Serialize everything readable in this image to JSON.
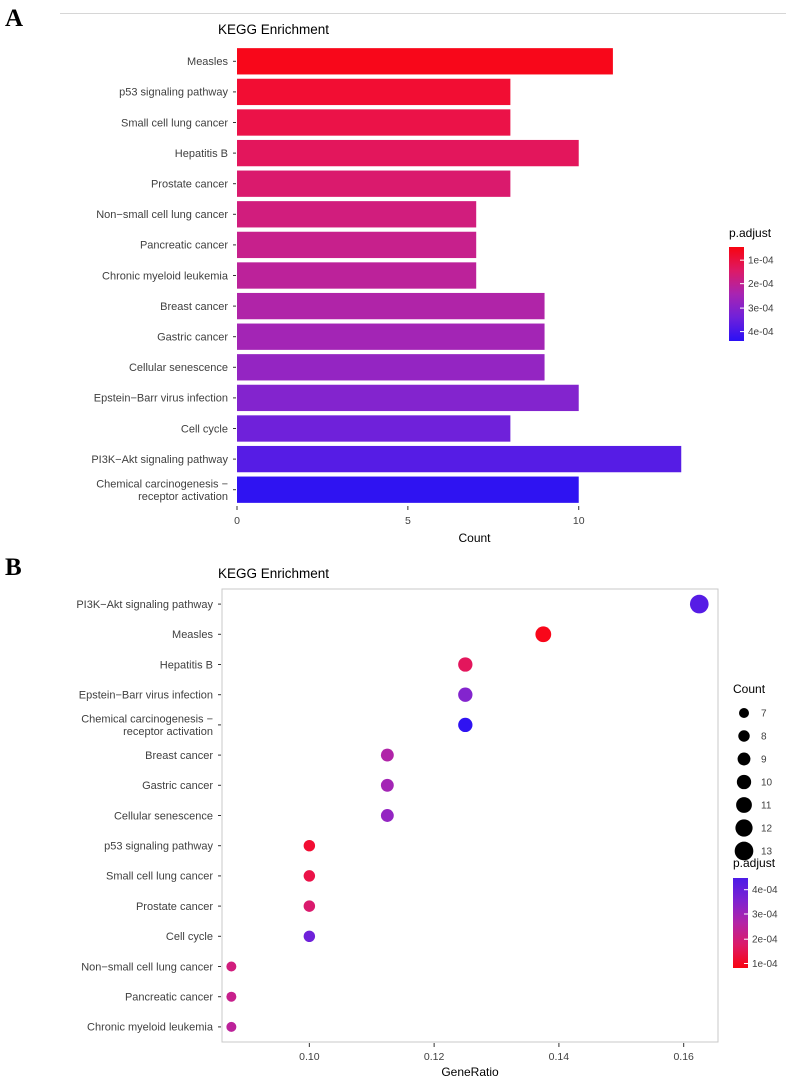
{
  "figure": {
    "panel_a_label": "A",
    "panel_b_label": "B"
  },
  "chart_data": [
    {
      "id": "kegg_bar",
      "type": "bar",
      "orientation": "horizontal",
      "title": "KEGG Enrichment",
      "xlabel": "Count",
      "xlim": [
        0,
        13.9
      ],
      "xticks": [
        0,
        5,
        10
      ],
      "grid": false,
      "categories": [
        "Measles",
        "p53 signaling pathway",
        "Small cell lung cancer",
        "Hepatitis B",
        "Prostate cancer",
        "Non−small cell lung cancer",
        "Pancreatic cancer",
        "Chronic myeloid leukemia",
        "Breast cancer",
        "Gastric cancer",
        "Cellular senescence",
        "Epstein−Barr virus infection",
        "Cell cycle",
        "PI3K−Akt signaling pathway",
        "Chemical carcinogenesis −\nreceptor activation"
      ],
      "values": [
        11,
        8,
        8,
        10,
        8,
        7,
        7,
        7,
        9,
        9,
        9,
        10,
        8,
        13,
        10
      ],
      "bar_colors": [
        "#F8071A",
        "#F20D33",
        "#EB1248",
        "#E3165C",
        "#DA1A6D",
        "#D11D7D",
        "#C7208C",
        "#BC229A",
        "#B024A8",
        "#A325B5",
        "#9425C2",
        "#8324CE",
        "#6F21DA",
        "#561CE5",
        "#2F13F2"
      ],
      "legend": {
        "title": "p.adjust",
        "tick_labels": [
          "1e-04",
          "2e-04",
          "3e-04",
          "4e-04"
        ],
        "gradient": [
          "#F80410",
          "#DD1A66",
          "#A824B2",
          "#6F21DA",
          "#2A10F5"
        ]
      }
    },
    {
      "id": "kegg_dot",
      "type": "scatter",
      "title": "KEGG Enrichment",
      "xlabel": "GeneRatio",
      "xlim": [
        0.086,
        0.1655
      ],
      "xticks": [
        0.1,
        0.12,
        0.14,
        0.16
      ],
      "xtick_labels": [
        "0.10",
        "0.12",
        "0.14",
        "0.16"
      ],
      "grid": false,
      "legend_position": "right",
      "categories": [
        "PI3K−Akt signaling pathway",
        "Measles",
        "Hepatitis B",
        "Epstein−Barr virus infection",
        "Chemical carcinogenesis −\nreceptor activation",
        "Breast cancer",
        "Gastric cancer",
        "Cellular senescence",
        "p53 signaling pathway",
        "Small cell lung cancer",
        "Prostate cancer",
        "Cell cycle",
        "Non−small cell lung cancer",
        "Pancreatic cancer",
        "Chronic myeloid leukemia"
      ],
      "gene_ratio": [
        0.1625,
        0.1375,
        0.125,
        0.125,
        0.125,
        0.1125,
        0.1125,
        0.1125,
        0.1,
        0.1,
        0.1,
        0.1,
        0.0875,
        0.0875,
        0.0875
      ],
      "count": [
        13,
        11,
        10,
        10,
        10,
        9,
        9,
        9,
        8,
        8,
        8,
        8,
        7,
        7,
        7
      ],
      "dot_colors": [
        "#561CE5",
        "#F8071A",
        "#E3165C",
        "#8324CE",
        "#2F13F2",
        "#B024A8",
        "#A325B5",
        "#9425C2",
        "#F20D33",
        "#EB1248",
        "#DA1A6D",
        "#6F21DA",
        "#D11D7D",
        "#C7208C",
        "#BC229A"
      ],
      "legend_count": {
        "title": "Count",
        "sizes": [
          7,
          8,
          9,
          10,
          11,
          12,
          13
        ]
      },
      "legend_padjust": {
        "title": "p.adjust",
        "tick_labels": [
          "4e-04",
          "3e-04",
          "2e-04",
          "1e-04"
        ],
        "gradient": [
          "#4C1BE8",
          "#7E23D1",
          "#B324A6",
          "#DD1A66",
          "#F80410"
        ]
      }
    }
  ]
}
